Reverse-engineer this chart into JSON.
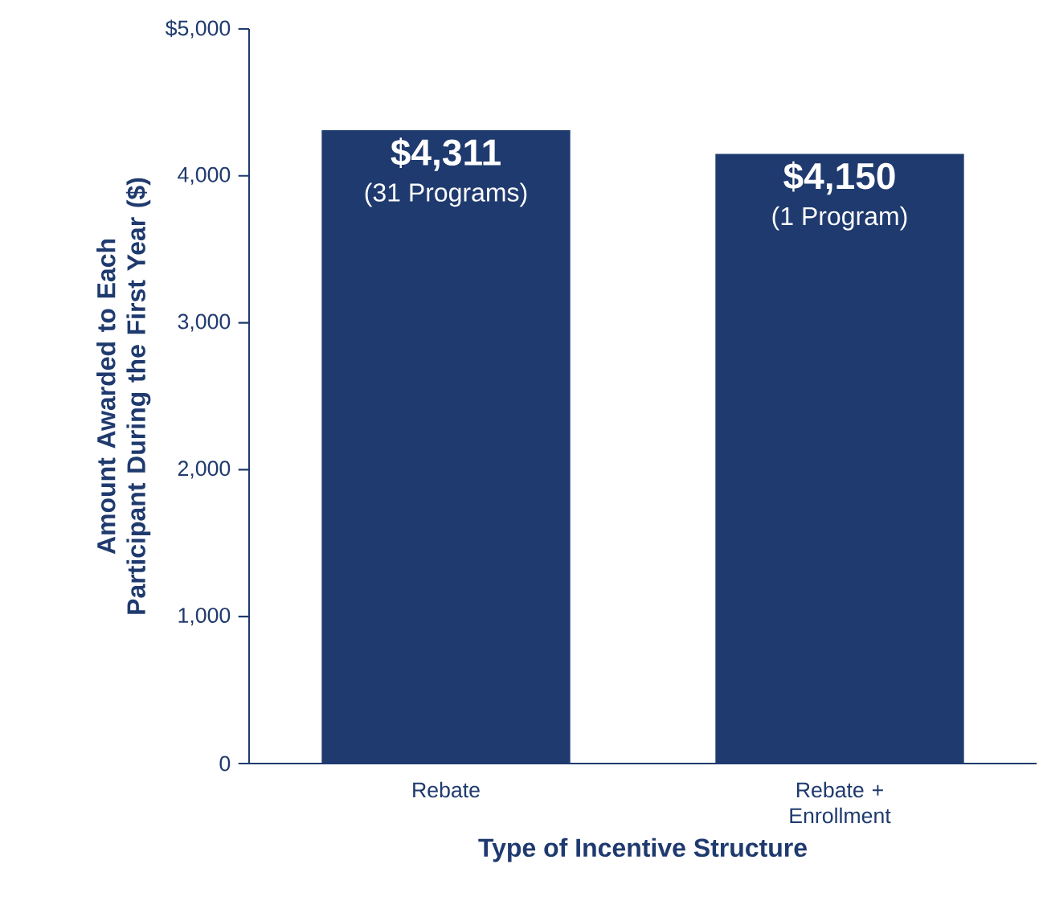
{
  "chart_data": {
    "type": "bar",
    "xlabel": "Type of Incentive Structure",
    "ylabel": "Amount Awarded to Each Participant During the First Year ($)",
    "categories": [
      "Rebate",
      "Rebate + Enrollment"
    ],
    "values": [
      4311,
      4150
    ],
    "color": "#1f3a6e",
    "value_labels": [
      "$4,311",
      "$4,150"
    ],
    "annotations": [
      {
        "text": "(31 Programs)",
        "x": "Rebate",
        "y": 4311
      },
      {
        "text": "(1 Program)",
        "x": "Rebate + Enrollment",
        "y": 4150
      }
    ],
    "ylim": [
      0,
      5000
    ],
    "yticks": [
      0,
      {
        "value": 1000,
        "label": "1,000"
      },
      {
        "value": 2000,
        "label": "2,000"
      },
      {
        "value": 3000,
        "label": "3,000"
      },
      {
        "value": 4000,
        "label": "4,000"
      },
      {
        "value": 5000,
        "label": "$5,000"
      }
    ],
    "grid": false
  }
}
